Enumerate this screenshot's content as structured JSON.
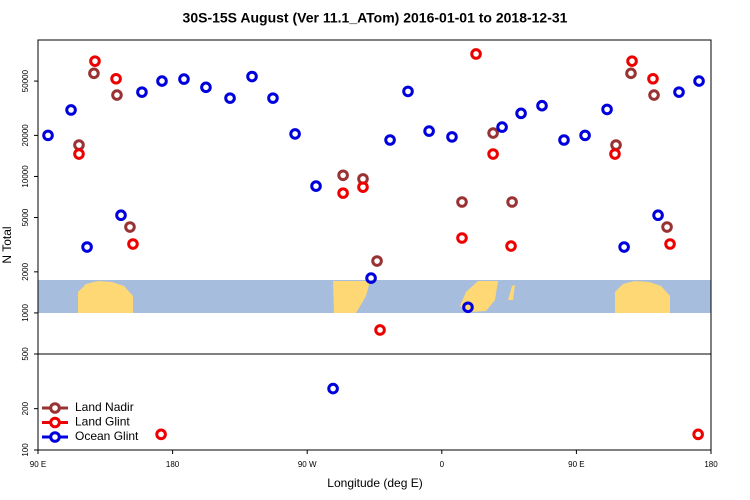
{
  "chart_data": [
    {
      "type": "scatter",
      "title": "30S-15S August (Ver 11.1_ATom)   2016-01-01 to 2018-12-31",
      "y_label": "N Total",
      "log_y": true,
      "xlim": [
        90,
        540
      ],
      "ylim": [
        500,
        100000
      ],
      "yticks": [
        500,
        1000,
        2000,
        5000,
        10000,
        20000,
        50000
      ],
      "series": [
        {
          "name": "Land Nadir",
          "color": "#993333",
          "x": [
            117.4,
            127.4,
            142.8,
            151.5,
            294.0,
            307.3,
            316.7,
            373.5,
            394.3,
            407.0,
            476.5,
            486.5,
            501.9,
            510.6
          ],
          "values": [
            17000,
            57000,
            39500,
            4260,
            10200,
            9600,
            2400,
            6500,
            20800,
            6500,
            17000,
            57000,
            39500,
            4260
          ]
        },
        {
          "name": "Land Glint",
          "color": "#ee0000",
          "x": [
            117.4,
            128.1,
            142.2,
            153.5,
            294.0,
            307.3,
            318.7,
            373.5,
            382.9,
            394.3,
            406.3,
            475.8,
            487.2,
            501.2,
            512.6
          ],
          "values": [
            14600,
            70000,
            52000,
            3200,
            7550,
            8350,
            750,
            3540,
            79000,
            14600,
            3090,
            14600,
            70000,
            52000,
            3200
          ]
        },
        {
          "name": "Ocean Glint",
          "color": "#0000dd",
          "x": [
            96.7,
            112.1,
            122.8,
            145.5,
            159.5,
            172.9,
            187.6,
            202.3,
            218.4,
            233.1,
            247.1,
            261.9,
            275.9,
            312.7,
            325.4,
            337.4,
            351.5,
            366.8,
            377.5,
            400.3,
            413.0,
            427.0,
            441.7,
            455.8,
            470.5,
            481.9,
            504.6,
            518.6,
            532.0
          ],
          "values": [
            20000,
            30700,
            3040,
            5200,
            41500,
            50000,
            51700,
            45000,
            37500,
            54000,
            37500,
            20500,
            8500,
            1800,
            18500,
            42000,
            21500,
            19500,
            1100,
            23000,
            29000,
            33000,
            18500,
            20000,
            31000,
            3040,
            5200,
            41500,
            50000
          ]
        }
      ]
    },
    {
      "type": "scatter",
      "x_label": "Longitude (deg E)",
      "log_y": true,
      "legend": "lower left",
      "xlim": [
        90,
        540
      ],
      "ylim": [
        100,
        500
      ],
      "xticks": [
        {
          "value": 90,
          "label": "90 E"
        },
        180,
        {
          "value": 270,
          "label": "90 W"
        },
        {
          "value": 360,
          "label": "0"
        },
        {
          "value": 450,
          "label": "90 E"
        },
        {
          "value": 540,
          "label": "180"
        }
      ],
      "yticks": [
        100,
        200
      ],
      "series": [
        {
          "name": "Land Nadir",
          "color": "#993333",
          "x": [],
          "values": []
        },
        {
          "name": "Land Glint",
          "color": "#ee0000",
          "x": [
            172.3,
            531.4
          ],
          "values": [
            130,
            130
          ]
        },
        {
          "name": "Ocean Glint",
          "color": "#0000dd",
          "x": [
            287.3
          ],
          "values": [
            280
          ]
        }
      ]
    }
  ]
}
